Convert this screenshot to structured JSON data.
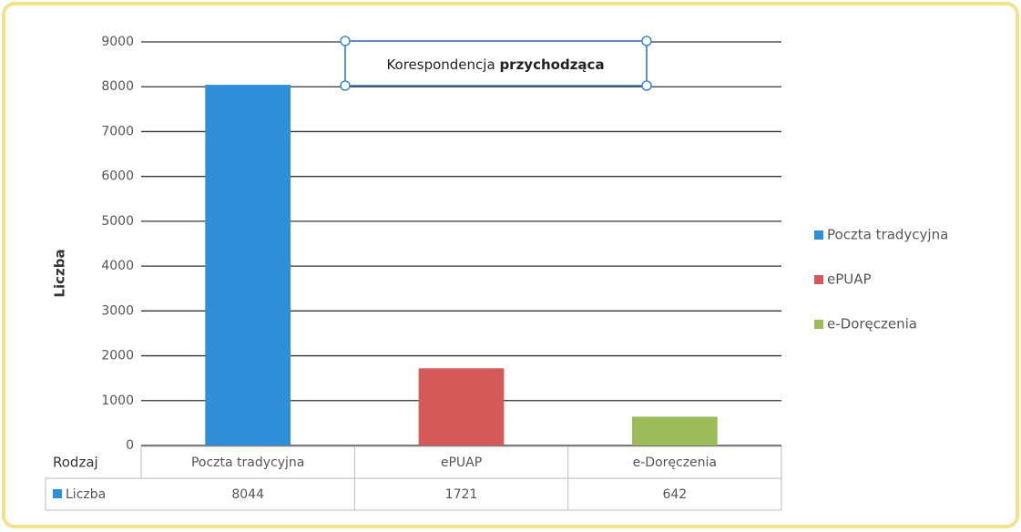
{
  "chart_data": {
    "type": "bar",
    "title": [
      "Korespondencja",
      "przychodząca"
    ],
    "y_label": "Liczba",
    "table_header": "Rodzaj",
    "series_name": "Liczba",
    "categories": [
      "Poczta tradycyjna",
      "ePUAP",
      "e-Doręczenia"
    ],
    "values": [
      8044,
      1721,
      642
    ],
    "colors": [
      "#2f8fd8",
      "#d45a5a",
      "#9dbb5a"
    ],
    "ylim": [
      0,
      9000
    ],
    "yticks": [
      0,
      1000,
      2000,
      3000,
      4000,
      5000,
      6000,
      7000,
      8000,
      9000
    ],
    "grid": true,
    "legend": "right"
  }
}
